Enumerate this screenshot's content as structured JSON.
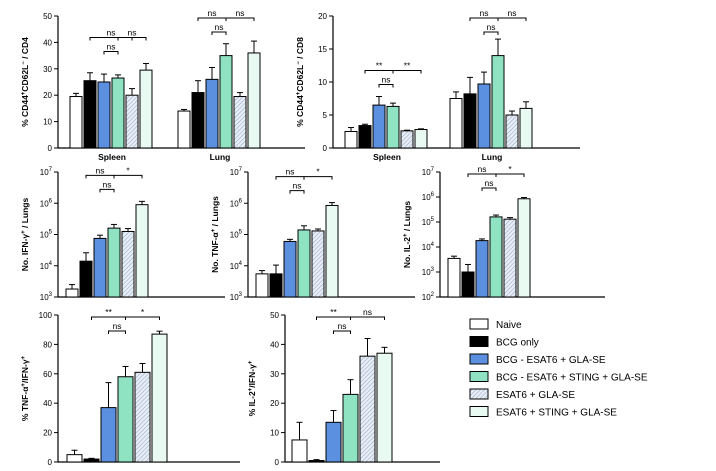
{
  "legend": [
    {
      "label": "Naive",
      "fill": "#ffffff",
      "pattern": "none"
    },
    {
      "label": "BCG only",
      "fill": "#000000",
      "pattern": "none"
    },
    {
      "label": "BCG - ESAT6 + GLA-SE",
      "fill": "#5b8fe0",
      "pattern": "none"
    },
    {
      "label": "BCG - ESAT6 + STING + GLA-SE",
      "fill": "#8fe3c3",
      "pattern": "none"
    },
    {
      "label": "ESAT6 + GLA-SE",
      "fill": "#e8eef8",
      "pattern": "hatch"
    },
    {
      "label": "ESAT6 + STING + GLA-SE",
      "fill": "#e9faf2",
      "pattern": "none"
    }
  ],
  "chart_data": [
    {
      "id": "p1",
      "type": "bar",
      "ylabel": "% CD44⁺CD62L⁻ / CD4",
      "scale": "linear",
      "ylim": [
        0,
        50
      ],
      "yticks": [
        0,
        10,
        20,
        30,
        40,
        50
      ],
      "groups": [
        "Spleen",
        "Lung"
      ],
      "values": [
        [
          19.5,
          25.5,
          25,
          26.5,
          20,
          29.5
        ],
        [
          14,
          21,
          26,
          35,
          19.5,
          36
        ]
      ],
      "errors": [
        [
          1.2,
          3,
          3,
          1.2,
          2.5,
          2.5
        ],
        [
          0.6,
          4.5,
          4.5,
          4.5,
          1.5,
          4.5
        ]
      ],
      "sig": [
        {
          "g": 0,
          "a": 1,
          "b": 4,
          "level": 0,
          "label": "ns"
        },
        {
          "g": 0,
          "a": 3,
          "b": 5,
          "level": 0,
          "label": "ns"
        },
        {
          "g": 0,
          "a": 2,
          "b": 3,
          "level": 1,
          "label": "ns"
        },
        {
          "g": 1,
          "a": 1,
          "b": 3,
          "level": 0,
          "label": "ns"
        },
        {
          "g": 1,
          "a": 3,
          "b": 5,
          "level": 0,
          "label": "ns"
        },
        {
          "g": 1,
          "a": 2,
          "b": 3,
          "level": 1,
          "label": "ns"
        }
      ]
    },
    {
      "id": "p2",
      "type": "bar",
      "ylabel": "% CD44⁺CD62L⁻ / CD8",
      "scale": "linear",
      "ylim": [
        0,
        20
      ],
      "yticks": [
        0,
        5,
        10,
        15,
        20
      ],
      "groups": [
        "Spleen",
        "Lung"
      ],
      "values": [
        [
          2.5,
          3.4,
          6.5,
          6.3,
          2.6,
          2.8
        ],
        [
          7.5,
          8.2,
          9.7,
          14,
          5,
          6
        ]
      ],
      "errors": [
        [
          0.6,
          0.2,
          1.3,
          0.5,
          0.1,
          0.1
        ],
        [
          1,
          2.5,
          1.8,
          2.5,
          0.6,
          1
        ]
      ],
      "sig": [
        {
          "g": 0,
          "a": 1,
          "b": 3,
          "level": 0,
          "label": "**"
        },
        {
          "g": 0,
          "a": 3,
          "b": 5,
          "level": 0,
          "label": "**"
        },
        {
          "g": 0,
          "a": 2,
          "b": 3,
          "level": 1,
          "label": "ns"
        },
        {
          "g": 1,
          "a": 1,
          "b": 3,
          "level": 0,
          "label": "ns"
        },
        {
          "g": 1,
          "a": 3,
          "b": 5,
          "level": 0,
          "label": "ns"
        },
        {
          "g": 1,
          "a": 2,
          "b": 3,
          "level": 1,
          "label": "ns"
        }
      ]
    },
    {
      "id": "p3",
      "type": "bar",
      "ylabel": "No. IFN-γ⁺ / Lungs",
      "scale": "log",
      "ylim": [
        3,
        7
      ],
      "yticks": [
        3,
        4,
        5,
        6,
        7
      ],
      "groups": [
        ""
      ],
      "values": [
        [
          1800,
          14000,
          75000,
          160000,
          125000,
          900000
        ]
      ],
      "errors": [
        [
          700,
          12000,
          20000,
          50000,
          30000,
          250000
        ]
      ],
      "sig": [
        {
          "g": 0,
          "a": 1,
          "b": 3,
          "level": 0,
          "label": "ns"
        },
        {
          "g": 0,
          "a": 3,
          "b": 5,
          "level": 0,
          "label": "*"
        },
        {
          "g": 0,
          "a": 2,
          "b": 3,
          "level": 1,
          "label": "ns"
        }
      ]
    },
    {
      "id": "p4",
      "type": "bar",
      "ylabel": "No. TNF-α⁺ / Lungs",
      "scale": "log",
      "ylim": [
        3,
        7
      ],
      "yticks": [
        3,
        4,
        5,
        6,
        7
      ],
      "groups": [
        ""
      ],
      "values": [
        [
          5500,
          5500,
          60000,
          140000,
          130000,
          850000
        ]
      ],
      "errors": [
        [
          1500,
          5000,
          10000,
          50000,
          20000,
          200000
        ]
      ],
      "sig": [
        {
          "g": 0,
          "a": 1,
          "b": 3,
          "level": 0,
          "label": "ns"
        },
        {
          "g": 0,
          "a": 3,
          "b": 5,
          "level": 0,
          "label": "*"
        },
        {
          "g": 0,
          "a": 2,
          "b": 3,
          "level": 1,
          "label": "ns"
        }
      ]
    },
    {
      "id": "p5",
      "type": "bar",
      "ylabel": "No. IL-2⁺ / Lungs",
      "scale": "log",
      "ylim": [
        2,
        7
      ],
      "yticks": [
        2,
        3,
        4,
        5,
        6,
        7
      ],
      "groups": [
        ""
      ],
      "values": [
        [
          3500,
          1000,
          18000,
          160000,
          130000,
          850000
        ]
      ],
      "errors": [
        [
          800,
          1000,
          3000,
          30000,
          20000,
          100000
        ]
      ],
      "sig": [
        {
          "g": 0,
          "a": 1,
          "b": 3,
          "level": 0,
          "label": "ns"
        },
        {
          "g": 0,
          "a": 3,
          "b": 5,
          "level": 0,
          "label": "*"
        },
        {
          "g": 0,
          "a": 2,
          "b": 3,
          "level": 1,
          "label": "ns"
        }
      ]
    },
    {
      "id": "p6",
      "type": "bar",
      "ylabel": "% TNF-α⁺/IFN-γ⁺",
      "scale": "linear",
      "ylim": [
        0,
        100
      ],
      "yticks": [
        0,
        20,
        40,
        60,
        80,
        100
      ],
      "groups": [
        ""
      ],
      "values": [
        [
          5,
          2,
          37,
          58,
          61,
          87
        ]
      ],
      "errors": [
        [
          3,
          0.5,
          17,
          7,
          6,
          2
        ]
      ],
      "sig": [
        {
          "g": 0,
          "a": 1,
          "b": 3,
          "level": 0,
          "label": "**"
        },
        {
          "g": 0,
          "a": 3,
          "b": 5,
          "level": 0,
          "label": "*"
        },
        {
          "g": 0,
          "a": 2,
          "b": 3,
          "level": 1,
          "label": "ns"
        }
      ]
    },
    {
      "id": "p7",
      "type": "bar",
      "ylabel": "% IL-2⁺/IFN-γ⁺",
      "scale": "linear",
      "ylim": [
        0,
        50
      ],
      "yticks": [
        0,
        10,
        20,
        30,
        40,
        50
      ],
      "groups": [
        ""
      ],
      "values": [
        [
          7.5,
          0.5,
          13.5,
          23,
          36,
          37
        ]
      ],
      "errors": [
        [
          6,
          0.3,
          4,
          5,
          6,
          2
        ]
      ],
      "sig": [
        {
          "g": 0,
          "a": 1,
          "b": 3,
          "level": 0,
          "label": "**"
        },
        {
          "g": 0,
          "a": 3,
          "b": 5,
          "level": 0,
          "label": "ns"
        },
        {
          "g": 0,
          "a": 2,
          "b": 3,
          "level": 1,
          "label": "ns"
        }
      ]
    }
  ]
}
